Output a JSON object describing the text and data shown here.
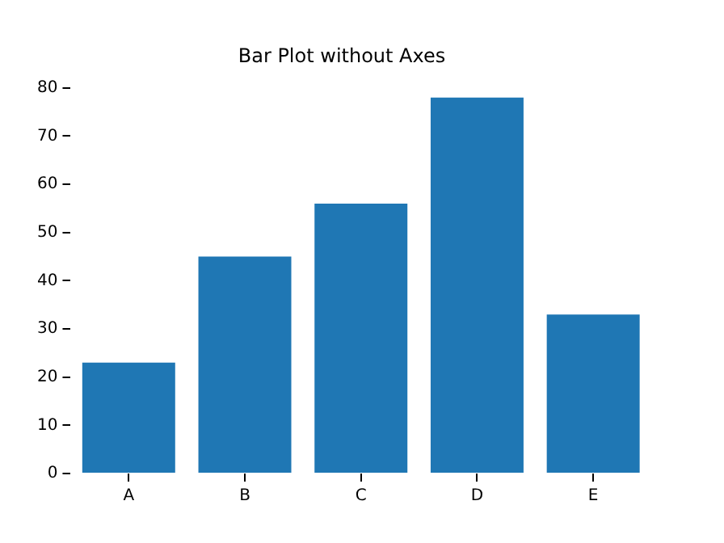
{
  "chart_data": {
    "type": "bar",
    "title": "Bar Plot without Axes",
    "categories": [
      "A",
      "B",
      "C",
      "D",
      "E"
    ],
    "values": [
      23,
      45,
      56,
      78,
      33
    ],
    "color": "#1f77b4",
    "ylim": [
      0,
      80
    ],
    "yticks": [
      0,
      10,
      20,
      30,
      40,
      50,
      60,
      70,
      80
    ]
  }
}
